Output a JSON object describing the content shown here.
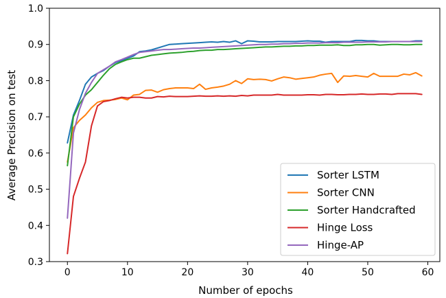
{
  "chart_data": {
    "type": "line",
    "xlabel": "Number of epochs",
    "ylabel": "Average Precision on test",
    "xlim": [
      -3,
      62
    ],
    "ylim": [
      0.3,
      1.0
    ],
    "xticks": [
      0,
      10,
      20,
      30,
      40,
      50,
      60
    ],
    "yticks": [
      0.3,
      0.4,
      0.5,
      0.6,
      0.7,
      0.8,
      0.9,
      1.0
    ],
    "xtick_labels": [
      "0",
      "10",
      "20",
      "30",
      "40",
      "50",
      "60"
    ],
    "ytick_labels": [
      "0.3",
      "0.4",
      "0.5",
      "0.6",
      "0.7",
      "0.8",
      "0.9",
      "1.0"
    ],
    "grid": false,
    "legend_position": "lower-right",
    "x": [
      0,
      1,
      2,
      3,
      4,
      5,
      6,
      7,
      8,
      9,
      10,
      11,
      12,
      13,
      14,
      15,
      16,
      17,
      18,
      19,
      20,
      21,
      22,
      23,
      24,
      25,
      26,
      27,
      28,
      29,
      30,
      31,
      32,
      33,
      34,
      35,
      36,
      37,
      38,
      39,
      40,
      41,
      42,
      43,
      44,
      45,
      46,
      47,
      48,
      49,
      50,
      51,
      52,
      53,
      54,
      55,
      56,
      57,
      58,
      59
    ],
    "series": [
      {
        "name": "Sorter LSTM",
        "color": "#1f77b4",
        "values": [
          0.628,
          0.705,
          0.745,
          0.79,
          0.81,
          0.82,
          0.828,
          0.84,
          0.85,
          0.855,
          0.862,
          0.868,
          0.88,
          0.882,
          0.885,
          0.89,
          0.895,
          0.9,
          0.901,
          0.902,
          0.903,
          0.904,
          0.905,
          0.906,
          0.907,
          0.906,
          0.908,
          0.906,
          0.91,
          0.902,
          0.91,
          0.909,
          0.907,
          0.907,
          0.907,
          0.908,
          0.908,
          0.908,
          0.908,
          0.909,
          0.91,
          0.909,
          0.909,
          0.906,
          0.908,
          0.908,
          0.908,
          0.908,
          0.911,
          0.911,
          0.91,
          0.91,
          0.908,
          0.908,
          0.908,
          0.908,
          0.908,
          0.908,
          0.91,
          0.91
        ]
      },
      {
        "name": "Sorter CNN",
        "color": "#ff7f0e",
        "values": [
          0.575,
          0.67,
          0.69,
          0.705,
          0.725,
          0.74,
          0.745,
          0.746,
          0.748,
          0.752,
          0.747,
          0.76,
          0.762,
          0.773,
          0.774,
          0.768,
          0.775,
          0.778,
          0.78,
          0.78,
          0.78,
          0.778,
          0.79,
          0.776,
          0.78,
          0.782,
          0.785,
          0.79,
          0.8,
          0.792,
          0.805,
          0.803,
          0.804,
          0.803,
          0.799,
          0.805,
          0.81,
          0.808,
          0.804,
          0.806,
          0.808,
          0.81,
          0.815,
          0.818,
          0.82,
          0.795,
          0.813,
          0.812,
          0.814,
          0.812,
          0.81,
          0.82,
          0.812,
          0.812,
          0.812,
          0.812,
          0.818,
          0.816,
          0.822,
          0.813
        ]
      },
      {
        "name": "Sorter Handcrafted",
        "color": "#2ca02c",
        "values": [
          0.565,
          0.7,
          0.735,
          0.76,
          0.775,
          0.795,
          0.815,
          0.833,
          0.845,
          0.852,
          0.858,
          0.862,
          0.862,
          0.866,
          0.87,
          0.872,
          0.874,
          0.876,
          0.877,
          0.878,
          0.88,
          0.881,
          0.883,
          0.884,
          0.884,
          0.886,
          0.886,
          0.887,
          0.888,
          0.889,
          0.89,
          0.891,
          0.892,
          0.893,
          0.893,
          0.894,
          0.895,
          0.895,
          0.896,
          0.896,
          0.897,
          0.897,
          0.898,
          0.898,
          0.898,
          0.899,
          0.897,
          0.897,
          0.899,
          0.899,
          0.9,
          0.9,
          0.898,
          0.899,
          0.9,
          0.9,
          0.899,
          0.899,
          0.9,
          0.9
        ]
      },
      {
        "name": "Hinge Loss",
        "color": "#d62728",
        "values": [
          0.322,
          0.48,
          0.53,
          0.575,
          0.675,
          0.73,
          0.742,
          0.745,
          0.75,
          0.754,
          0.752,
          0.754,
          0.754,
          0.752,
          0.752,
          0.756,
          0.755,
          0.757,
          0.756,
          0.756,
          0.756,
          0.757,
          0.758,
          0.757,
          0.757,
          0.758,
          0.757,
          0.758,
          0.757,
          0.759,
          0.758,
          0.76,
          0.76,
          0.76,
          0.76,
          0.762,
          0.76,
          0.76,
          0.76,
          0.76,
          0.761,
          0.761,
          0.76,
          0.762,
          0.762,
          0.761,
          0.761,
          0.762,
          0.762,
          0.763,
          0.762,
          0.762,
          0.763,
          0.763,
          0.762,
          0.764,
          0.764,
          0.764,
          0.764,
          0.762
        ]
      },
      {
        "name": "Hinge-AP",
        "color": "#9467bd",
        "values": [
          0.42,
          0.655,
          0.72,
          0.765,
          0.795,
          0.82,
          0.83,
          0.84,
          0.852,
          0.858,
          0.865,
          0.872,
          0.878,
          0.88,
          0.882,
          0.884,
          0.886,
          0.886,
          0.887,
          0.888,
          0.889,
          0.89,
          0.89,
          0.891,
          0.892,
          0.893,
          0.894,
          0.895,
          0.896,
          0.897,
          0.898,
          0.899,
          0.9,
          0.9,
          0.901,
          0.901,
          0.902,
          0.902,
          0.903,
          0.903,
          0.904,
          0.904,
          0.904,
          0.905,
          0.905,
          0.905,
          0.906,
          0.906,
          0.906,
          0.906,
          0.907,
          0.907,
          0.907,
          0.907,
          0.908,
          0.908,
          0.908,
          0.908,
          0.908,
          0.908
        ]
      }
    ]
  }
}
